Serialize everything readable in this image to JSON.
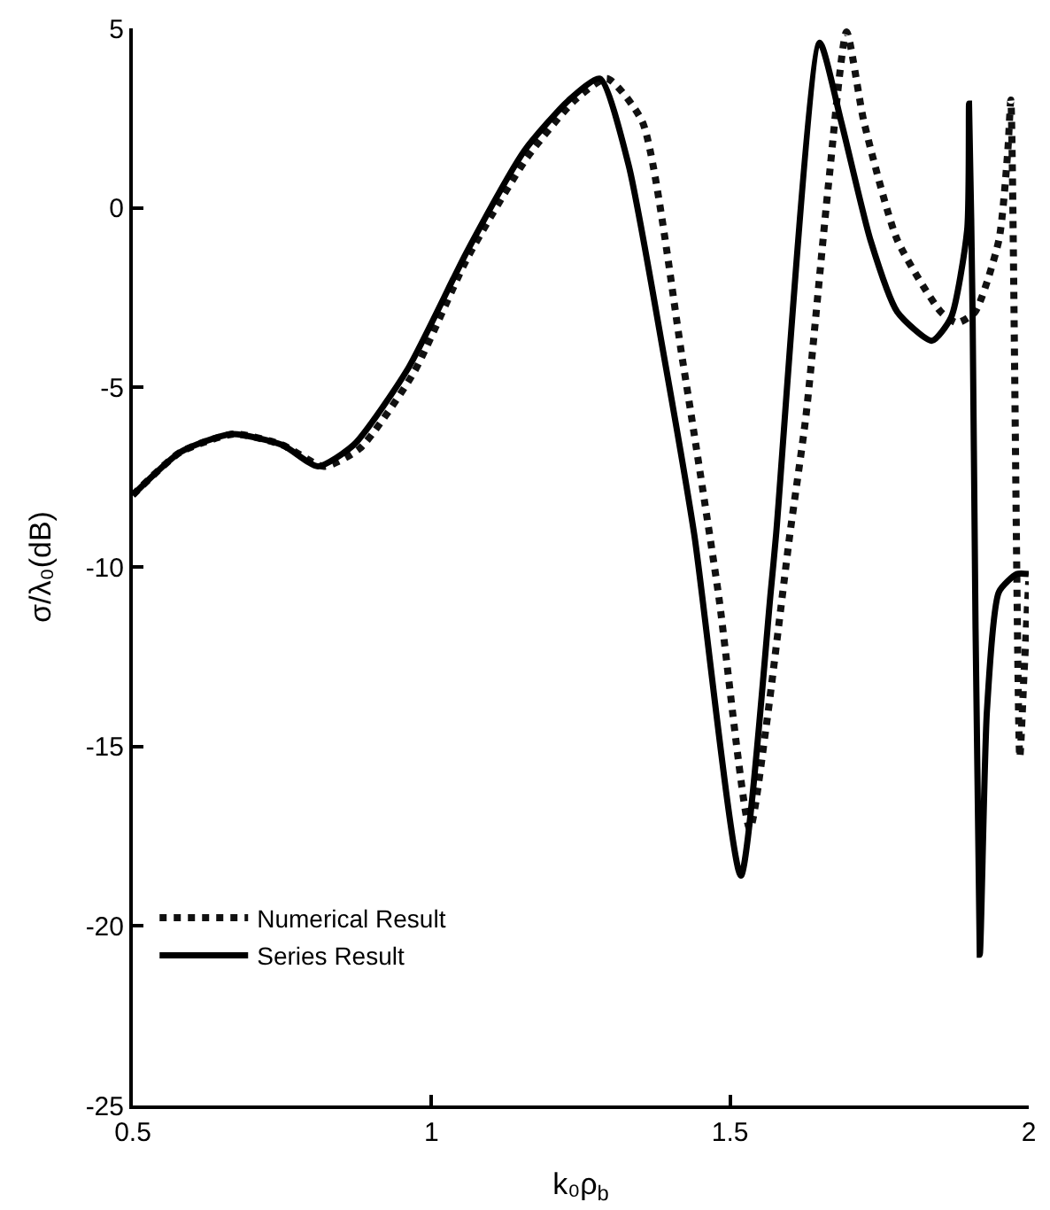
{
  "chart_data": {
    "type": "line",
    "xlabel": "k₀ρ$_{b}$",
    "ylabel": "σ/λ₀(dB)",
    "xlim": [
      0.5,
      2
    ],
    "ylim": [
      -25,
      5
    ],
    "xticks": [
      0.5,
      1,
      1.5,
      2
    ],
    "yticks": [
      -25,
      -20,
      -15,
      -10,
      -5,
      0,
      5
    ],
    "legend": "bottom left",
    "marker": "none",
    "series": [
      {
        "name": "Numerical Result",
        "color": "#111111",
        "line_style": "dotted",
        "x": [
          0.5,
          0.58,
          0.67,
          0.75,
          0.82,
          0.88,
          0.97,
          1.06,
          1.16,
          1.24,
          1.294,
          1.353,
          1.42,
          1.48,
          1.533,
          1.56,
          1.6,
          1.627,
          1.665,
          1.695,
          1.724,
          1.78,
          1.853,
          1.88,
          1.91,
          1.95,
          1.965,
          1.97,
          1.985,
          1.992,
          2.0
        ],
        "values": [
          -8.0,
          -6.8,
          -6.3,
          -6.6,
          -7.2,
          -6.7,
          -4.6,
          -1.4,
          1.4,
          3.0,
          3.6,
          2.4,
          -4.2,
          -10.7,
          -17.3,
          -14.5,
          -9.1,
          -5.8,
          0.7,
          4.9,
          2.4,
          -0.9,
          -2.9,
          -3.2,
          -2.9,
          -0.9,
          1.6,
          3.0,
          -15.3,
          -13.0,
          -10.4
        ]
      },
      {
        "name": "Series Result",
        "color": "#000000",
        "line_style": "solid",
        "x": [
          0.5,
          0.58,
          0.665,
          0.75,
          0.81,
          0.87,
          0.96,
          1.06,
          1.156,
          1.23,
          1.282,
          1.33,
          1.39,
          1.44,
          1.518,
          1.568,
          1.577,
          1.65,
          1.686,
          1.735,
          1.78,
          1.838,
          1.87,
          1.897,
          1.9,
          1.906,
          1.918,
          1.93,
          1.95,
          1.98,
          2.0
        ],
        "values": [
          -8.0,
          -6.8,
          -6.3,
          -6.6,
          -7.2,
          -6.6,
          -4.5,
          -1.2,
          1.6,
          3.0,
          3.6,
          1.2,
          -4.2,
          -9.1,
          -18.6,
          -10.7,
          -9.1,
          4.6,
          2.4,
          -0.9,
          -2.9,
          -3.7,
          -3.05,
          -0.6,
          2.9,
          -3.0,
          -20.8,
          -14.0,
          -10.7,
          -10.2,
          -10.2
        ]
      }
    ]
  }
}
